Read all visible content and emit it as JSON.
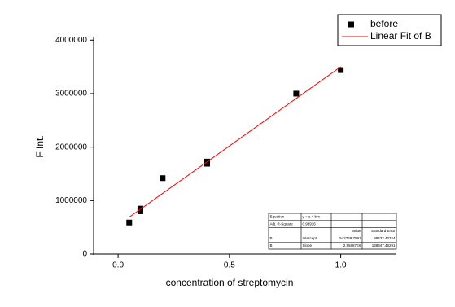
{
  "chart_data": {
    "type": "scatter",
    "x_label": "concentration of streptomycin",
    "y_label": "F Int.",
    "xlim": [
      -0.11,
      1.25
    ],
    "ylim": [
      0,
      4050000
    ],
    "xticks": [
      {
        "value": 0,
        "label": "0.0"
      },
      0.5,
      {
        "value": 1,
        "label": "1.0"
      }
    ],
    "yticks": [
      0,
      1000000,
      2000000,
      3000000,
      4000000
    ],
    "legend": "top-right",
    "series": [
      {
        "name": "before",
        "color": "#000000",
        "marker": "square",
        "x": [
          0.05,
          0.1,
          0.1,
          0.2,
          0.4,
          0.4,
          0.8,
          1.0
        ],
        "values": [
          590000,
          800000,
          850000,
          1420000,
          1690000,
          1730000,
          3000000,
          3440000
        ]
      },
      {
        "name": "Linear Fit of B",
        "color": "#ff0000",
        "marker": "line",
        "x": [
          0.05,
          1.0
        ],
        "values": [
          690713,
          3501640
        ]
      }
    ],
    "table": {
      "rows": [
        [
          "Equation",
          "y = a + b*x",
          null,
          null
        ],
        [
          "Adj. R-Square",
          "0.98916",
          null,
          null
        ],
        [
          null,
          null,
          "Value",
          "Standard Error"
        ],
        [
          "B",
          "Intercept",
          "542769.7591",
          "98432.42324"
        ],
        [
          "B",
          "Slope",
          "2.95887E6",
          "138347.46291"
        ]
      ]
    }
  }
}
